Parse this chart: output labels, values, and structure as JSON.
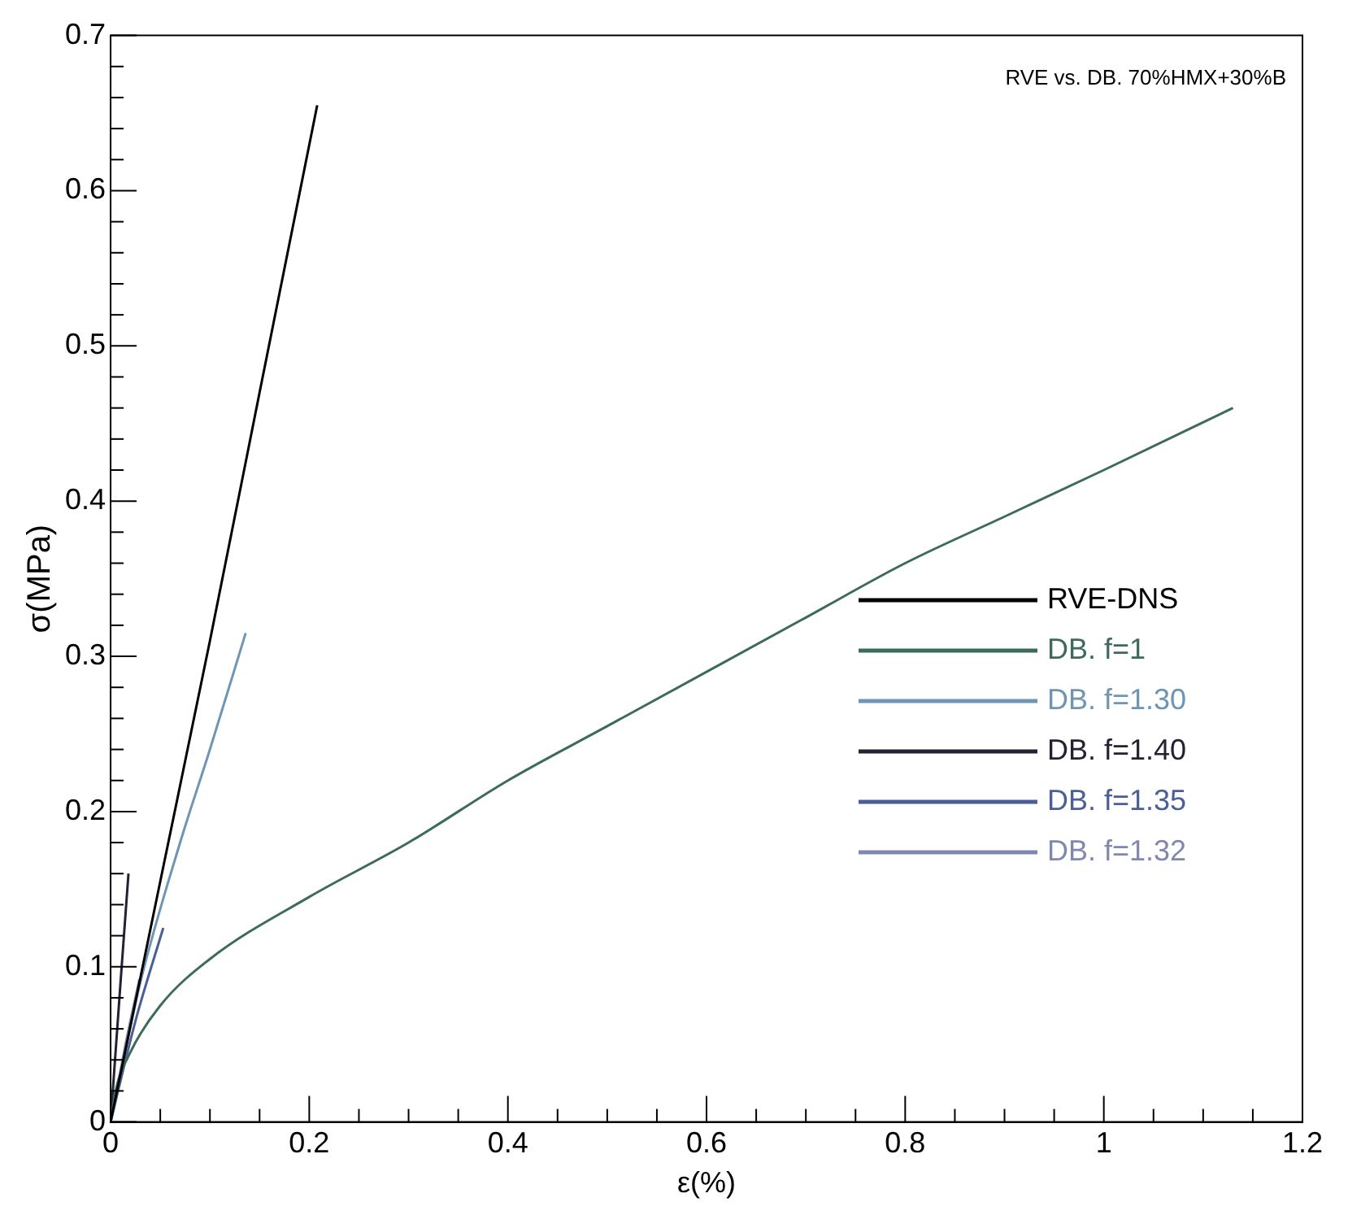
{
  "chart_data": {
    "type": "line",
    "annotations": [
      "RVE vs. DB. 70%HMX+30%B"
    ],
    "xlabel": "ε(%)",
    "ylabel": "σ(MPa)",
    "xlim": [
      0,
      1.2
    ],
    "ylim": [
      0,
      0.7
    ],
    "xticks": [
      0,
      {
        "value": 0.05,
        "label": null
      },
      {
        "value": 0.1,
        "label": null
      },
      {
        "value": 0.15,
        "label": null
      },
      0.2,
      {
        "value": 0.25,
        "label": null
      },
      {
        "value": 0.3,
        "label": null
      },
      {
        "value": 0.35,
        "label": null
      },
      0.4,
      {
        "value": 0.45,
        "label": null
      },
      {
        "value": 0.5,
        "label": null
      },
      {
        "value": 0.55,
        "label": null
      },
      0.6,
      {
        "value": 0.65,
        "label": null
      },
      {
        "value": 0.7,
        "label": null
      },
      {
        "value": 0.75,
        "label": null
      },
      0.8,
      {
        "value": 0.85,
        "label": null
      },
      {
        "value": 0.9,
        "label": null
      },
      {
        "value": 0.95,
        "label": null
      },
      1,
      {
        "value": 1.05,
        "label": null
      },
      {
        "value": 1.1,
        "label": null
      },
      {
        "value": 1.15,
        "label": null
      },
      1.2
    ],
    "yticks": [
      0,
      {
        "value": 0.02,
        "label": null
      },
      {
        "value": 0.04,
        "label": null
      },
      {
        "value": 0.06,
        "label": null
      },
      {
        "value": 0.08,
        "label": null
      },
      0.1,
      {
        "value": 0.12,
        "label": null
      },
      {
        "value": 0.14,
        "label": null
      },
      {
        "value": 0.16,
        "label": null
      },
      {
        "value": 0.18,
        "label": null
      },
      0.2,
      {
        "value": 0.22,
        "label": null
      },
      {
        "value": 0.24,
        "label": null
      },
      {
        "value": 0.26,
        "label": null
      },
      {
        "value": 0.28,
        "label": null
      },
      0.3,
      {
        "value": 0.32,
        "label": null
      },
      {
        "value": 0.34,
        "label": null
      },
      {
        "value": 0.36,
        "label": null
      },
      {
        "value": 0.38,
        "label": null
      },
      0.4,
      {
        "value": 0.42,
        "label": null
      },
      {
        "value": 0.44,
        "label": null
      },
      {
        "value": 0.46,
        "label": null
      },
      {
        "value": 0.48,
        "label": null
      },
      0.5,
      {
        "value": 0.52,
        "label": null
      },
      {
        "value": 0.54,
        "label": null
      },
      {
        "value": 0.56,
        "label": null
      },
      {
        "value": 0.58,
        "label": null
      },
      0.6,
      {
        "value": 0.62,
        "label": null
      },
      {
        "value": 0.64,
        "label": null
      },
      {
        "value": 0.66,
        "label": null
      },
      {
        "value": 0.68,
        "label": null
      },
      0.7
    ],
    "grid": false,
    "legend": "right",
    "marker": "none",
    "line_style": "solid",
    "series": [
      {
        "name": "RVE-DNS",
        "color": "#000000",
        "x": [
          0,
          0.05,
          0.1,
          0.15,
          0.208
        ],
        "values": [
          0,
          0.155,
          0.31,
          0.47,
          0.655
        ]
      },
      {
        "name": "DB. f=1",
        "color": "#3d6b5a",
        "x": [
          0,
          0.005,
          0.02,
          0.05,
          0.1,
          0.2,
          0.3,
          0.4,
          0.5,
          0.6,
          0.7,
          0.8,
          0.9,
          1.0,
          1.13
        ],
        "values": [
          0,
          0.02,
          0.045,
          0.075,
          0.105,
          0.145,
          0.18,
          0.22,
          0.255,
          0.29,
          0.325,
          0.36,
          0.39,
          0.42,
          0.46
        ]
      },
      {
        "name": "DB. f=1.30",
        "color": "#6f95b5",
        "x": [
          0,
          0.03,
          0.07,
          0.1,
          0.136
        ],
        "values": [
          0,
          0.09,
          0.18,
          0.24,
          0.315
        ]
      },
      {
        "name": "DB. f=1.40",
        "color": "#222233",
        "x": [
          0,
          0.01,
          0.018
        ],
        "values": [
          0,
          0.09,
          0.16
        ]
      },
      {
        "name": "DB. f=1.35",
        "color": "#4a5f99",
        "x": [
          0,
          0.025,
          0.053
        ],
        "values": [
          0,
          0.065,
          0.125
        ]
      },
      {
        "name": "DB. f=1.32",
        "color": "#8088b0",
        "x": [
          0,
          0.015,
          0.029
        ],
        "values": [
          0,
          0.05,
          0.092
        ]
      }
    ]
  }
}
